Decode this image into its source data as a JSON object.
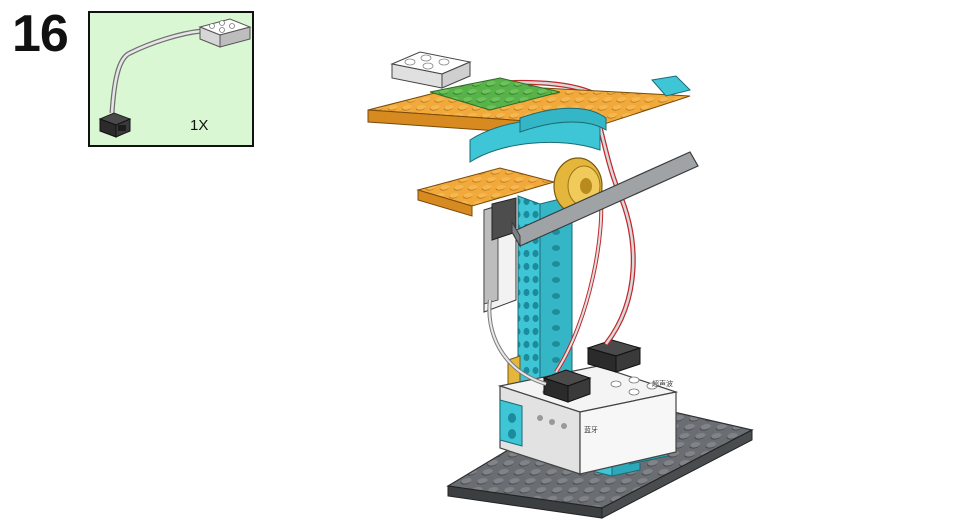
{
  "step": {
    "number": "16"
  },
  "parts": [
    {
      "quantity": "1X",
      "icon": "cable-sensor-icon"
    }
  ],
  "model": {
    "icon": "lego-model-assembly-icon",
    "hub_labels": [
      "蓝牙",
      "超声波"
    ]
  },
  "colors": {
    "part_box_bg": "#d9f7d2",
    "plate_gray": "#5f6366",
    "azure": "#3fc6d6",
    "orange": "#f2a93b",
    "green": "#58b24a",
    "white": "#f4f4f4",
    "gold": "#e4b63c",
    "cable_red": "#c0282d"
  }
}
